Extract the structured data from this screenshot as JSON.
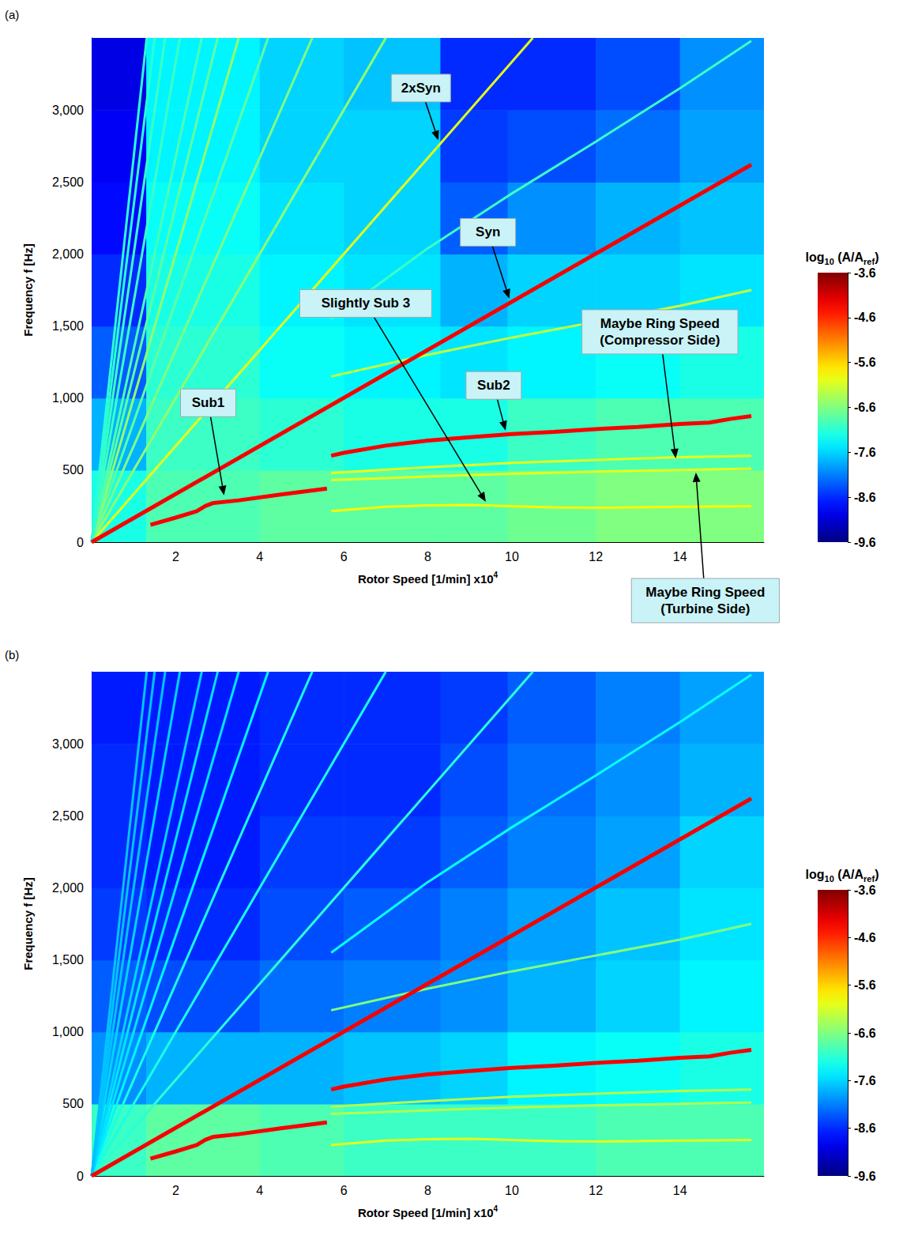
{
  "chart_data": [
    {
      "type": "spectrogram",
      "title": "(a)",
      "x_label": [
        "Rotor Speed [1/min] x10",
        "4"
      ],
      "y_label": [
        "Frequency f [Hz]"
      ],
      "xlim": [
        0,
        16
      ],
      "xticks": [
        2,
        4,
        6,
        8,
        10,
        12,
        14
      ],
      "ylim": [
        0,
        3500
      ],
      "yticks": [
        0,
        500,
        1000,
        1500,
        2000,
        2500,
        3000
      ],
      "grid": false,
      "cells": {
        "x_edges": [
          0,
          1.3,
          4,
          6,
          8.3,
          9.9,
          12,
          14,
          16
        ],
        "y_edges": [
          0,
          500,
          1000,
          1500,
          2000,
          2500,
          3000,
          3500
        ],
        "values": [
          [
            -7.2,
            -6.9,
            -6.8,
            -6.8,
            -6.8,
            -6.7,
            -6.6,
            -6.6
          ],
          [
            -7.8,
            -7.0,
            -7.1,
            -7.2,
            -7.2,
            -7.0,
            -6.9,
            -6.9
          ],
          [
            -8.3,
            -7.1,
            -7.3,
            -7.4,
            -7.5,
            -7.4,
            -7.3,
            -7.2
          ],
          [
            -8.6,
            -7.2,
            -7.4,
            -7.5,
            -7.8,
            -7.6,
            -7.6,
            -7.5
          ],
          [
            -8.8,
            -7.3,
            -7.5,
            -7.6,
            -8.3,
            -8.0,
            -7.8,
            -7.7
          ],
          [
            -8.9,
            -7.4,
            -7.6,
            -7.6,
            -8.5,
            -8.4,
            -8.2,
            -7.9
          ],
          [
            -9.0,
            -7.4,
            -7.6,
            -7.7,
            -8.6,
            -8.6,
            -8.4,
            -8.0
          ]
        ]
      },
      "ridges": [
        {
          "values": [
            [
              0,
              0
            ],
            [
              15.7,
              2620
            ]
          ],
          "level": -4.3
        },
        {
          "values": [
            [
              0,
              0
            ],
            [
              10.5,
              3500
            ]
          ],
          "level": -6.0
        },
        {
          "values": [
            [
              0,
              0
            ],
            [
              7.0,
              3500
            ]
          ],
          "level": -6.5
        },
        {
          "values": [
            [
              0,
              0
            ],
            [
              5.25,
              3500
            ]
          ],
          "level": -6.6
        },
        {
          "values": [
            [
              0,
              0
            ],
            [
              4.2,
              3500
            ]
          ],
          "level": -6.8
        },
        {
          "values": [
            [
              0,
              0
            ],
            [
              3.5,
              3500
            ]
          ],
          "level": -6.5
        },
        {
          "values": [
            [
              0,
              0
            ],
            [
              3.0,
              3500
            ]
          ],
          "level": -6.8
        },
        {
          "values": [
            [
              0,
              0
            ],
            [
              2.62,
              3500
            ]
          ],
          "level": -6.9
        },
        {
          "values": [
            [
              0,
              0
            ],
            [
              2.1,
              3500
            ]
          ],
          "level": -7.0
        },
        {
          "values": [
            [
              0,
              0
            ],
            [
              1.75,
              3500
            ]
          ],
          "level": -7.0
        },
        {
          "values": [
            [
              0,
              0
            ],
            [
              1.5,
              3500
            ]
          ],
          "level": -7.1
        },
        {
          "values": [
            [
              0,
              0
            ],
            [
              1.31,
              3500
            ]
          ],
          "level": -7.1
        },
        {
          "values": [
            [
              1.4,
              120
            ],
            [
              2.0,
              170
            ],
            [
              2.5,
              215
            ],
            [
              2.7,
              250
            ],
            [
              2.9,
              272
            ],
            [
              3.5,
              290
            ],
            [
              4.5,
              330
            ],
            [
              5.6,
              372
            ]
          ],
          "level": -4.3
        },
        {
          "values": [
            [
              5.7,
              600
            ],
            [
              6.0,
              620
            ],
            [
              7.0,
              670
            ],
            [
              8.0,
              705
            ],
            [
              9.0,
              728
            ],
            [
              10.0,
              750
            ],
            [
              11.0,
              765
            ],
            [
              12.0,
              785
            ],
            [
              13.0,
              800
            ],
            [
              14.0,
              820
            ],
            [
              14.7,
              830
            ],
            [
              15.2,
              855
            ],
            [
              15.7,
              875
            ]
          ],
          "level": -4.3
        },
        {
          "values": [
            [
              5.7,
              215
            ],
            [
              7.0,
              245
            ],
            [
              8.0,
              255
            ],
            [
              9.0,
              258
            ],
            [
              10.0,
              250
            ],
            [
              11.0,
              242
            ],
            [
              12.0,
              238
            ],
            [
              14.0,
              245
            ],
            [
              15.7,
              250
            ]
          ],
          "level": -5.8
        },
        {
          "values": [
            [
              5.7,
              480
            ],
            [
              8.0,
              520
            ],
            [
              10.0,
              550
            ],
            [
              12.0,
              570
            ],
            [
              14.0,
              590
            ],
            [
              15.7,
              600
            ]
          ],
          "level": -6.0
        },
        {
          "values": [
            [
              5.7,
              430
            ],
            [
              8.0,
              455
            ],
            [
              10.0,
              475
            ],
            [
              12.0,
              490
            ],
            [
              14.0,
              500
            ],
            [
              15.7,
              510
            ]
          ],
          "level": -6.0
        },
        {
          "values": [
            [
              5.7,
              1150
            ],
            [
              8.0,
              1300
            ],
            [
              10.0,
              1420
            ],
            [
              12.0,
              1530
            ],
            [
              14.0,
              1640
            ],
            [
              15.7,
              1750
            ]
          ],
          "level": -6.2
        },
        {
          "values": [
            [
              5.7,
              1550
            ],
            [
              8.0,
              2040
            ],
            [
              10.0,
              2420
            ],
            [
              12.0,
              2780
            ],
            [
              14.0,
              3150
            ],
            [
              15.7,
              3480
            ]
          ],
          "level": -7.0
        }
      ],
      "annotations": [
        {
          "text": [
            "2xSyn"
          ],
          "x": 8.25,
          "y": 2790
        },
        {
          "text": [
            "Syn"
          ],
          "x": 9.94,
          "y": 1690
        },
        {
          "text": [
            "Slightly Sub 3"
          ],
          "x": 9.38,
          "y": 280
        },
        {
          "text": [
            "Sub1"
          ],
          "x": 3.15,
          "y": 325
        },
        {
          "text": [
            "Sub2"
          ],
          "x": 9.85,
          "y": 775
        },
        {
          "text": [
            "Maybe Ring Speed",
            "(Compressor Side)"
          ],
          "x": 13.9,
          "y": 582
        },
        {
          "text": [
            "Maybe Ring Speed",
            "(Turbine Side)"
          ],
          "x": 14.38,
          "y": 483
        }
      ],
      "colorbar": {
        "title": [
          "log",
          "10",
          " (A/A",
          "ref",
          ")"
        ],
        "range": [
          -9.6,
          -3.6
        ],
        "ticks": [
          -3.6,
          -4.6,
          -5.6,
          -6.6,
          -7.6,
          -8.6,
          -9.6
        ]
      }
    },
    {
      "type": "spectrogram",
      "title": "(b)",
      "x_label": [
        "Rotor Speed [1/min] x10",
        "4"
      ],
      "y_label": [
        "Frequency f [Hz]"
      ],
      "xlim": [
        0,
        16
      ],
      "xticks": [
        2,
        4,
        6,
        8,
        10,
        12,
        14
      ],
      "ylim": [
        0,
        3500
      ],
      "yticks": [
        0,
        500,
        1000,
        1500,
        2000,
        2500,
        3000
      ],
      "grid": false,
      "cells": {
        "x_edges": [
          0,
          1.3,
          4,
          6,
          8.3,
          9.9,
          12,
          14,
          16
        ],
        "y_edges": [
          0,
          500,
          1000,
          1500,
          2000,
          2500,
          3000,
          3500
        ],
        "values": [
          [
            -7.0,
            -6.8,
            -6.9,
            -7.0,
            -7.0,
            -7.0,
            -6.9,
            -6.9
          ],
          [
            -8.0,
            -7.8,
            -7.8,
            -7.7,
            -7.6,
            -7.4,
            -7.3,
            -7.2
          ],
          [
            -8.3,
            -8.4,
            -8.2,
            -8.1,
            -8.0,
            -7.8,
            -7.6,
            -7.4
          ],
          [
            -8.5,
            -8.6,
            -8.4,
            -8.3,
            -8.1,
            -7.9,
            -7.7,
            -7.5
          ],
          [
            -8.6,
            -8.7,
            -8.5,
            -8.5,
            -8.3,
            -8.1,
            -7.9,
            -7.6
          ],
          [
            -8.6,
            -8.7,
            -8.6,
            -8.6,
            -8.4,
            -8.2,
            -8.0,
            -7.8
          ],
          [
            -8.7,
            -8.7,
            -8.6,
            -8.6,
            -8.5,
            -8.3,
            -8.1,
            -7.9
          ]
        ]
      },
      "ridges": [
        {
          "values": [
            [
              0,
              0
            ],
            [
              15.7,
              2620
            ]
          ],
          "level": -4.3
        },
        {
          "values": [
            [
              0,
              0
            ],
            [
              10.5,
              3500
            ]
          ],
          "level": -7.1
        },
        {
          "values": [
            [
              0,
              0
            ],
            [
              7.0,
              3500
            ]
          ],
          "level": -7.2
        },
        {
          "values": [
            [
              0,
              0
            ],
            [
              5.25,
              3500
            ]
          ],
          "level": -7.2
        },
        {
          "values": [
            [
              0,
              0
            ],
            [
              4.2,
              3500
            ]
          ],
          "level": -7.4
        },
        {
          "values": [
            [
              0,
              0
            ],
            [
              3.5,
              3500
            ]
          ],
          "level": -7.5
        },
        {
          "values": [
            [
              0,
              0
            ],
            [
              3.0,
              3500
            ]
          ],
          "level": -7.5
        },
        {
          "values": [
            [
              0,
              0
            ],
            [
              2.62,
              3500
            ]
          ],
          "level": -7.6
        },
        {
          "values": [
            [
              0,
              0
            ],
            [
              2.1,
              3500
            ]
          ],
          "level": -7.6
        },
        {
          "values": [
            [
              0,
              0
            ],
            [
              1.75,
              3500
            ]
          ],
          "level": -7.7
        },
        {
          "values": [
            [
              0,
              0
            ],
            [
              1.5,
              3500
            ]
          ],
          "level": -7.7
        },
        {
          "values": [
            [
              0,
              0
            ],
            [
              1.31,
              3500
            ]
          ],
          "level": -7.7
        },
        {
          "values": [
            [
              1.4,
              120
            ],
            [
              2.0,
              170
            ],
            [
              2.5,
              215
            ],
            [
              2.7,
              250
            ],
            [
              2.9,
              272
            ],
            [
              3.5,
              290
            ],
            [
              4.5,
              330
            ],
            [
              5.6,
              372
            ]
          ],
          "level": -4.3
        },
        {
          "values": [
            [
              5.7,
              600
            ],
            [
              6.0,
              620
            ],
            [
              7.0,
              670
            ],
            [
              8.0,
              705
            ],
            [
              9.0,
              728
            ],
            [
              10.0,
              750
            ],
            [
              11.0,
              765
            ],
            [
              12.0,
              785
            ],
            [
              13.0,
              800
            ],
            [
              14.0,
              820
            ],
            [
              14.7,
              830
            ],
            [
              15.2,
              855
            ],
            [
              15.7,
              875
            ]
          ],
          "level": -4.3
        },
        {
          "values": [
            [
              5.7,
              215
            ],
            [
              7.0,
              245
            ],
            [
              8.0,
              255
            ],
            [
              9.0,
              258
            ],
            [
              10.0,
              250
            ],
            [
              11.0,
              242
            ],
            [
              12.0,
              238
            ],
            [
              14.0,
              245
            ],
            [
              15.7,
              250
            ]
          ],
          "level": -6.0
        },
        {
          "values": [
            [
              5.7,
              480
            ],
            [
              8.0,
              520
            ],
            [
              10.0,
              550
            ],
            [
              12.0,
              570
            ],
            [
              14.0,
              590
            ],
            [
              15.7,
              600
            ]
          ],
          "level": -6.3
        },
        {
          "values": [
            [
              5.7,
              430
            ],
            [
              8.0,
              455
            ],
            [
              10.0,
              475
            ],
            [
              12.0,
              490
            ],
            [
              14.0,
              500
            ],
            [
              15.7,
              510
            ]
          ],
          "level": -6.3
        },
        {
          "values": [
            [
              5.7,
              1150
            ],
            [
              8.0,
              1300
            ],
            [
              10.0,
              1420
            ],
            [
              12.0,
              1530
            ],
            [
              14.0,
              1640
            ],
            [
              15.7,
              1750
            ]
          ],
          "level": -6.6
        },
        {
          "values": [
            [
              5.7,
              1550
            ],
            [
              8.0,
              2040
            ],
            [
              10.0,
              2420
            ],
            [
              12.0,
              2780
            ],
            [
              14.0,
              3150
            ],
            [
              15.7,
              3480
            ]
          ],
          "level": -7.3
        }
      ],
      "annotations": [],
      "colorbar": {
        "title": [
          "log",
          "10",
          " (A/A",
          "ref",
          ")"
        ],
        "range": [
          -9.6,
          -3.6
        ],
        "ticks": [
          -3.6,
          -4.6,
          -5.6,
          -6.6,
          -7.6,
          -8.6,
          -9.6
        ]
      }
    }
  ]
}
